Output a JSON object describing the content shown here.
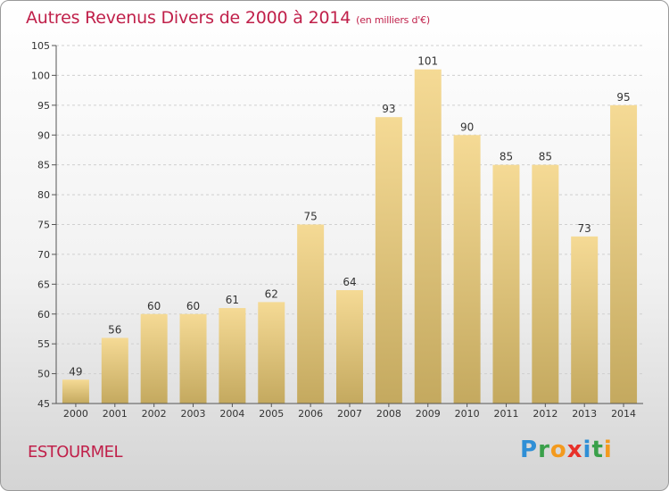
{
  "title": "Autres Revenus Divers de 2000 à 2014",
  "subtitle": "(en milliers d'€)",
  "town": "ESTOURMEL",
  "logo_letters": [
    "P",
    "r",
    "o",
    "x",
    "i",
    "t",
    "i"
  ],
  "colors": {
    "title": "#c0204a",
    "bar_top": "#f5da95",
    "bar_bottom": "#c4a95f",
    "grid": "#d0d0d0"
  },
  "chart_data": {
    "type": "bar",
    "title": "Autres Revenus Divers de 2000 à 2014",
    "subtitle": "(en milliers d'€)",
    "xlabel": "",
    "ylabel": "",
    "categories": [
      "2000",
      "2001",
      "2002",
      "2003",
      "2004",
      "2005",
      "2006",
      "2007",
      "2008",
      "2009",
      "2010",
      "2011",
      "2012",
      "2013",
      "2014"
    ],
    "values": [
      49,
      56,
      60,
      60,
      61,
      62,
      75,
      64,
      93,
      101,
      90,
      85,
      85,
      73,
      95
    ],
    "ylim": [
      45,
      105
    ],
    "yticks": [
      45,
      50,
      55,
      60,
      65,
      70,
      75,
      80,
      85,
      90,
      95,
      100,
      105
    ],
    "grid": true,
    "data_labels": true
  }
}
